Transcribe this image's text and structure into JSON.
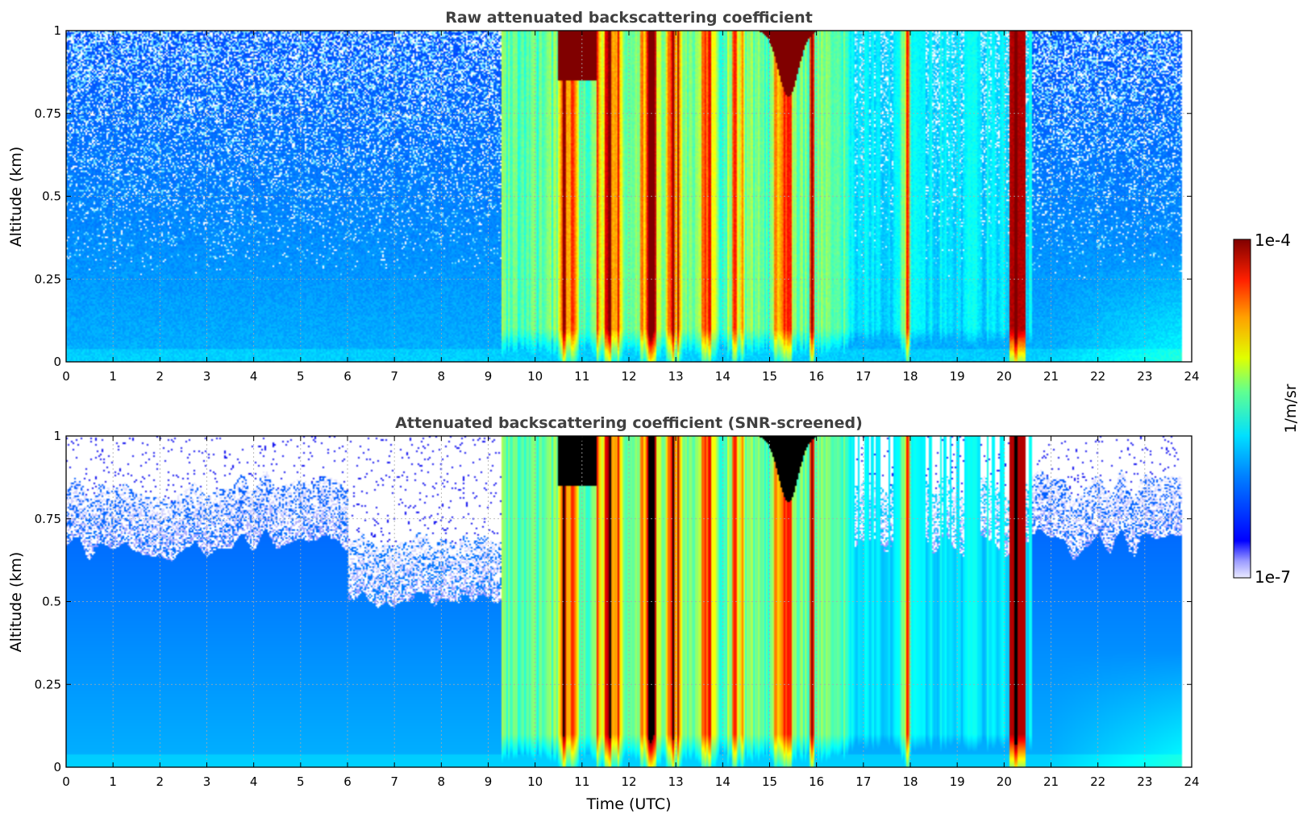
{
  "chart_data": [
    {
      "type": "heatmap",
      "title": "Raw attenuated backscattering coefficient",
      "xlabel": "",
      "ylabel": "Altitude (km)",
      "xlim": [
        0,
        24
      ],
      "ylim": [
        0,
        1
      ],
      "xticks": [
        "0",
        "1",
        "2",
        "3",
        "4",
        "5",
        "6",
        "7",
        "8",
        "9",
        "10",
        "11",
        "12",
        "13",
        "14",
        "15",
        "16",
        "17",
        "18",
        "19",
        "20",
        "21",
        "22",
        "23",
        "24"
      ],
      "yticks": [
        "0",
        "0.25",
        "0.5",
        "0.75",
        "1"
      ],
      "grid": true,
      "data_end_time": 23.8,
      "screened": false
    },
    {
      "type": "heatmap",
      "title": "Attenuated backscattering coefficient (SNR-screened)",
      "xlabel": "Time (UTC)",
      "ylabel": "Altitude (km)",
      "xlim": [
        0,
        24
      ],
      "ylim": [
        0,
        1
      ],
      "xticks": [
        "0",
        "1",
        "2",
        "3",
        "4",
        "5",
        "6",
        "7",
        "8",
        "9",
        "10",
        "11",
        "12",
        "13",
        "14",
        "15",
        "16",
        "17",
        "18",
        "19",
        "20",
        "21",
        "22",
        "23",
        "24"
      ],
      "yticks": [
        "0",
        "0.25",
        "0.5",
        "0.75",
        "1"
      ],
      "grid": true,
      "data_end_time": 23.8,
      "screened": true
    }
  ],
  "colorbar": {
    "label": "1/m/sr",
    "max_label": "1e-4",
    "min_label": "1e-7",
    "scale": "log",
    "range": [
      1e-07,
      0.0001
    ],
    "colormap": "jet"
  }
}
